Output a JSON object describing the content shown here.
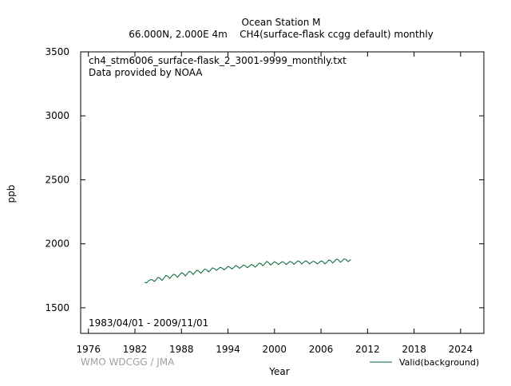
{
  "chart_data": {
    "type": "line",
    "title_line1": "Ocean Station M",
    "title_line2": "66.000N, 2.000E 4m    CH4(surface-flask ccgg default) monthly",
    "filename": "ch4_stm6006_surface-flask_2_3001-9999_monthly.txt",
    "provider": "Data provided by NOAA",
    "date_range": "1983/04/01 - 2009/11/01",
    "xlabel": "Year",
    "ylabel": "ppb",
    "credit": "WMO WDCGG / JMA",
    "xlim": [
      1975,
      2027
    ],
    "ylim": [
      1300,
      3500
    ],
    "xticks": [
      1976,
      1982,
      1988,
      1994,
      2000,
      2006,
      2012,
      2018,
      2024
    ],
    "yticks": [
      1500,
      2000,
      2500,
      3000,
      3500
    ],
    "grid": false,
    "legend_position": "bottom-right",
    "series": [
      {
        "name": "Valid(background)",
        "color": "#006633",
        "points": [
          [
            1983.25,
            1700
          ],
          [
            1983.5,
            1694
          ],
          [
            1983.75,
            1710
          ],
          [
            1984.0,
            1720
          ],
          [
            1984.25,
            1718
          ],
          [
            1984.5,
            1705
          ],
          [
            1984.75,
            1722
          ],
          [
            1985.0,
            1738
          ],
          [
            1985.25,
            1730
          ],
          [
            1985.5,
            1714
          ],
          [
            1985.75,
            1733
          ],
          [
            1986.0,
            1753
          ],
          [
            1986.25,
            1746
          ],
          [
            1986.5,
            1730
          ],
          [
            1986.75,
            1748
          ],
          [
            1987.0,
            1762
          ],
          [
            1987.25,
            1755
          ],
          [
            1987.5,
            1738
          ],
          [
            1987.75,
            1757
          ],
          [
            1988.0,
            1774
          ],
          [
            1988.25,
            1766
          ],
          [
            1988.5,
            1748
          ],
          [
            1988.75,
            1766
          ],
          [
            1989.0,
            1785
          ],
          [
            1989.25,
            1778
          ],
          [
            1989.5,
            1760
          ],
          [
            1989.75,
            1777
          ],
          [
            1990.0,
            1793
          ],
          [
            1990.25,
            1786
          ],
          [
            1990.5,
            1770
          ],
          [
            1990.75,
            1786
          ],
          [
            1991.0,
            1803
          ],
          [
            1991.25,
            1797
          ],
          [
            1991.5,
            1780
          ],
          [
            1991.75,
            1795
          ],
          [
            1992.0,
            1812
          ],
          [
            1992.25,
            1806
          ],
          [
            1992.5,
            1793
          ],
          [
            1992.75,
            1803
          ],
          [
            1993.0,
            1816
          ],
          [
            1993.25,
            1810
          ],
          [
            1993.5,
            1797
          ],
          [
            1993.75,
            1808
          ],
          [
            1994.0,
            1823
          ],
          [
            1994.25,
            1817
          ],
          [
            1994.5,
            1803
          ],
          [
            1994.75,
            1815
          ],
          [
            1995.0,
            1830
          ],
          [
            1995.25,
            1823
          ],
          [
            1995.5,
            1808
          ],
          [
            1995.75,
            1820
          ],
          [
            1996.0,
            1834
          ],
          [
            1996.25,
            1828
          ],
          [
            1996.5,
            1813
          ],
          [
            1996.75,
            1825
          ],
          [
            1997.0,
            1838
          ],
          [
            1997.25,
            1832
          ],
          [
            1997.5,
            1817
          ],
          [
            1997.75,
            1830
          ],
          [
            1998.0,
            1848
          ],
          [
            1998.25,
            1845
          ],
          [
            1998.5,
            1828
          ],
          [
            1998.75,
            1843
          ],
          [
            1999.0,
            1862
          ],
          [
            1999.25,
            1852
          ],
          [
            1999.5,
            1834
          ],
          [
            1999.75,
            1847
          ],
          [
            2000.0,
            1860
          ],
          [
            2000.25,
            1853
          ],
          [
            2000.5,
            1838
          ],
          [
            2000.75,
            1850
          ],
          [
            2001.0,
            1860
          ],
          [
            2001.25,
            1853
          ],
          [
            2001.5,
            1838
          ],
          [
            2001.75,
            1850
          ],
          [
            2002.0,
            1862
          ],
          [
            2002.25,
            1856
          ],
          [
            2002.5,
            1840
          ],
          [
            2002.75,
            1852
          ],
          [
            2003.0,
            1866
          ],
          [
            2003.25,
            1860
          ],
          [
            2003.5,
            1843
          ],
          [
            2003.75,
            1855
          ],
          [
            2004.0,
            1866
          ],
          [
            2004.25,
            1860
          ],
          [
            2004.5,
            1843
          ],
          [
            2004.75,
            1854
          ],
          [
            2005.0,
            1864
          ],
          [
            2005.25,
            1858
          ],
          [
            2005.5,
            1842
          ],
          [
            2005.75,
            1853
          ],
          [
            2006.0,
            1866
          ],
          [
            2006.25,
            1860
          ],
          [
            2006.5,
            1843
          ],
          [
            2006.75,
            1856
          ],
          [
            2007.0,
            1874
          ],
          [
            2007.25,
            1868
          ],
          [
            2007.5,
            1850
          ],
          [
            2007.75,
            1864
          ],
          [
            2008.0,
            1880
          ],
          [
            2008.25,
            1874
          ],
          [
            2008.5,
            1856
          ],
          [
            2008.75,
            1868
          ],
          [
            2009.0,
            1882
          ],
          [
            2009.25,
            1876
          ],
          [
            2009.5,
            1860
          ],
          [
            2009.75,
            1872
          ],
          [
            2009.83,
            1878
          ]
        ]
      }
    ]
  }
}
